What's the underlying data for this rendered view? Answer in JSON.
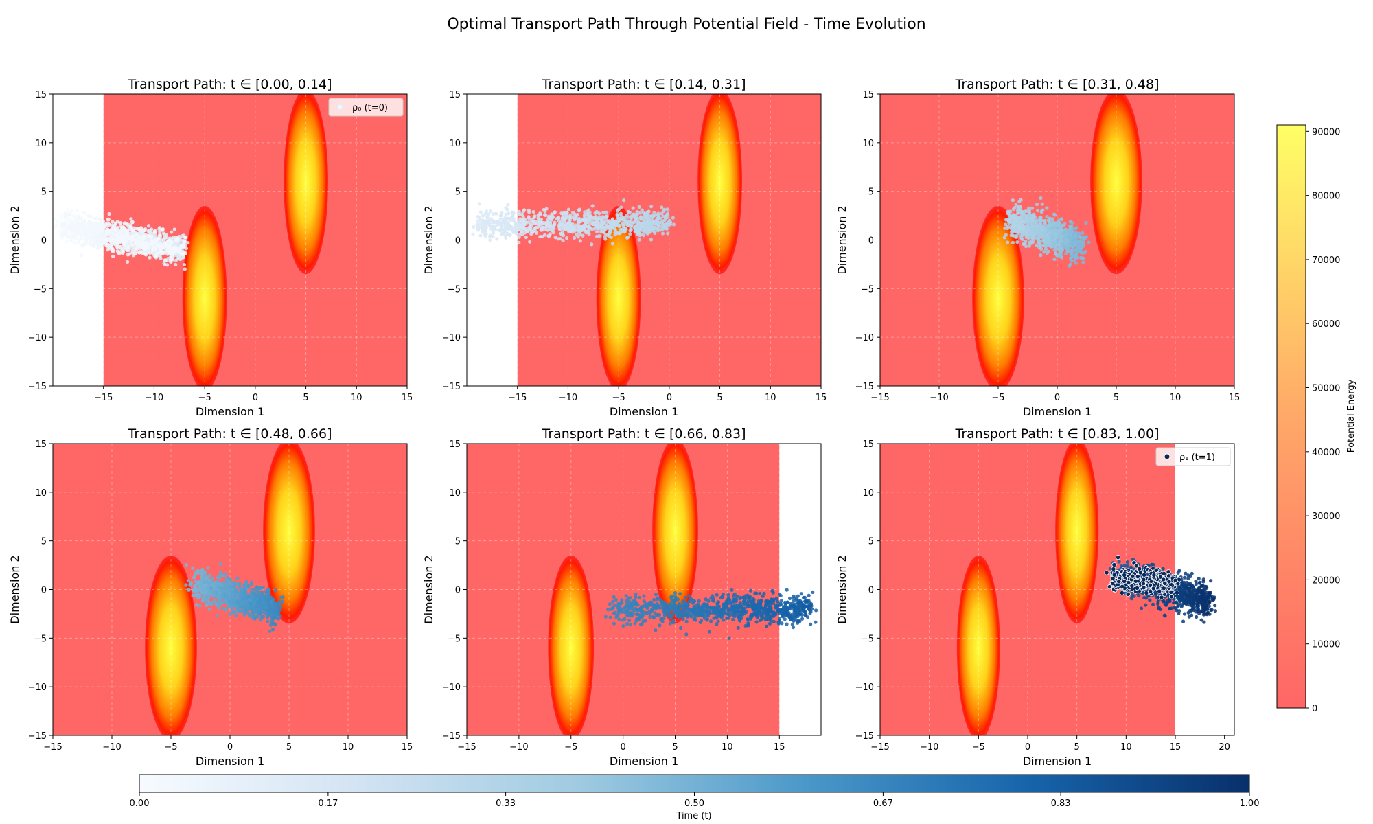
{
  "figure": {
    "title": "Optimal Transport Path Through Potential Field - Time Evolution"
  },
  "chart_data": [
    {
      "type": "scatter",
      "title": "Transport Path: t ∈ [0.00, 0.14]",
      "xlabel": "Dimension 1",
      "ylabel": "Dimension 2",
      "xlim": [
        -20,
        15
      ],
      "ylim": [
        -15,
        15
      ],
      "xticks": [
        -15,
        -10,
        -5,
        0,
        5,
        10,
        15
      ],
      "yticks": [
        -15,
        -10,
        -5,
        0,
        5,
        10,
        15
      ],
      "grid": true,
      "field_xlim": [
        -15,
        15
      ],
      "legend": "ρ₀ (t=0)",
      "legend_placement": "top-right",
      "cloud": {
        "x": [
          -19,
          -7
        ],
        "center_y": [
          1.5,
          -1.0
        ],
        "spread_y": 1.3,
        "t": [
          0.0,
          0.14
        ]
      },
      "marker_points": {
        "role": "start",
        "x": [
          -19,
          -7
        ],
        "center_y": [
          1.5,
          -1.0
        ],
        "spread_y": 1.2
      }
    },
    {
      "type": "scatter",
      "title": "Transport Path: t ∈ [0.14, 0.31]",
      "xlabel": "Dimension 1",
      "ylabel": "Dimension 2",
      "xlim": [
        -20,
        15
      ],
      "ylim": [
        -15,
        15
      ],
      "xticks": [
        -15,
        -10,
        -5,
        0,
        5,
        10,
        15
      ],
      "yticks": [
        -15,
        -10,
        -5,
        0,
        5,
        10,
        15
      ],
      "grid": true,
      "field_xlim": [
        -15,
        15
      ],
      "cloud": {
        "x": [
          -19,
          0
        ],
        "center_y": [
          1.5,
          1.8
        ],
        "spread_y": 1.2,
        "t": [
          0.14,
          0.31
        ]
      }
    },
    {
      "type": "scatter",
      "title": "Transport Path: t ∈ [0.31, 0.48]",
      "xlabel": "Dimension 1",
      "ylabel": "Dimension 2",
      "xlim": [
        -15,
        15
      ],
      "ylim": [
        -15,
        15
      ],
      "xticks": [
        -15,
        -10,
        -5,
        0,
        5,
        10,
        15
      ],
      "yticks": [
        -15,
        -10,
        -5,
        0,
        5,
        10,
        15
      ],
      "grid": true,
      "field_xlim": [
        -15,
        15
      ],
      "cloud": {
        "x": [
          -4,
          2
        ],
        "center_y": [
          2.0,
          -0.5
        ],
        "spread_y": 1.5,
        "t": [
          0.31,
          0.48
        ]
      }
    },
    {
      "type": "scatter",
      "title": "Transport Path: t ∈ [0.48, 0.66]",
      "xlabel": "Dimension 1",
      "ylabel": "Dimension 2",
      "xlim": [
        -15,
        15
      ],
      "ylim": [
        -15,
        15
      ],
      "xticks": [
        -15,
        -10,
        -5,
        0,
        5,
        10,
        15
      ],
      "yticks": [
        -15,
        -10,
        -5,
        0,
        5,
        10,
        15
      ],
      "grid": true,
      "field_xlim": [
        -15,
        15
      ],
      "cloud": {
        "x": [
          -3,
          4
        ],
        "center_y": [
          0.5,
          -2.0
        ],
        "spread_y": 1.4,
        "t": [
          0.48,
          0.66
        ]
      }
    },
    {
      "type": "scatter",
      "title": "Transport Path: t ∈ [0.66, 0.83]",
      "xlabel": "Dimension 1",
      "ylabel": "Dimension 2",
      "xlim": [
        -15,
        19
      ],
      "ylim": [
        -15,
        15
      ],
      "xticks": [
        -15,
        -10,
        -5,
        0,
        5,
        10,
        15
      ],
      "yticks": [
        -15,
        -10,
        -5,
        0,
        5,
        10,
        15
      ],
      "grid": true,
      "field_xlim": [
        -15,
        15
      ],
      "cloud": {
        "x": [
          -1,
          18
        ],
        "center_y": [
          -2.0,
          -2.0
        ],
        "spread_y": 1.2,
        "t": [
          0.66,
          0.83
        ]
      }
    },
    {
      "type": "scatter",
      "title": "Transport Path: t ∈ [0.83, 1.00]",
      "xlabel": "Dimension 1",
      "ylabel": "Dimension 2",
      "xlim": [
        -15,
        21
      ],
      "ylim": [
        -15,
        15
      ],
      "xticks": [
        -15,
        -10,
        -5,
        0,
        5,
        10,
        15,
        20
      ],
      "yticks": [
        -15,
        -10,
        -5,
        0,
        5,
        10,
        15
      ],
      "grid": true,
      "field_xlim": [
        -15,
        15
      ],
      "legend": "ρ₁ (t=1)",
      "legend_placement": "top-right",
      "cloud": {
        "x": [
          9,
          18.5
        ],
        "center_y": [
          1.5,
          -1.3
        ],
        "spread_y": 1.5,
        "t": [
          0.83,
          1.0
        ]
      },
      "marker_points": {
        "role": "end",
        "x": [
          8.5,
          15
        ],
        "center_y": [
          1.2,
          0.6
        ],
        "spread_y": 1.3
      }
    }
  ],
  "potential_field": {
    "wells": [
      {
        "x": 5,
        "y": 6,
        "half_width": 2.2,
        "half_height": 9.5
      },
      {
        "x": -5,
        "y": -6,
        "half_width": 2.2,
        "half_height": 9.5
      }
    ],
    "base_color": "#ff6666",
    "ring_color": "#ff0000",
    "core_color": "#ffff40"
  },
  "time_colorbar": {
    "label": "Time (t)",
    "ticks": [
      "0.00",
      "0.17",
      "0.33",
      "0.50",
      "0.67",
      "0.83",
      "1.00"
    ],
    "colormap": "Blues"
  },
  "energy_colorbar": {
    "label": "Potential Energy",
    "min": 0,
    "max": 91000,
    "ticks": [
      "0",
      "10000",
      "20000",
      "30000",
      "40000",
      "50000",
      "60000",
      "70000",
      "80000",
      "90000"
    ],
    "colormap": "autumn-alpha"
  }
}
